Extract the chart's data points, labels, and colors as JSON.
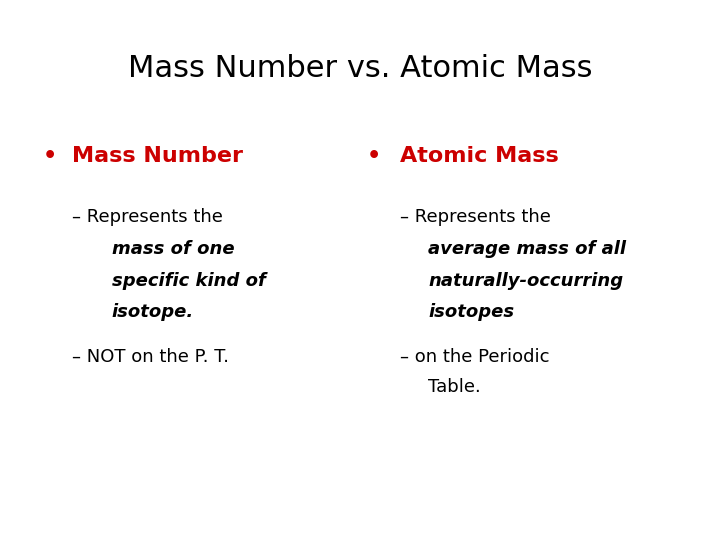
{
  "title": "Mass Number vs. Atomic Mass",
  "title_color": "#000000",
  "title_fontsize": 22,
  "background_color": "#ffffff",
  "bullet_color": "#cc0000",
  "text_color": "#000000",
  "bullet_fontsize": 16,
  "sub_fontsize": 13,
  "left_bullet": "Mass Number",
  "right_bullet": "Atomic Mass"
}
